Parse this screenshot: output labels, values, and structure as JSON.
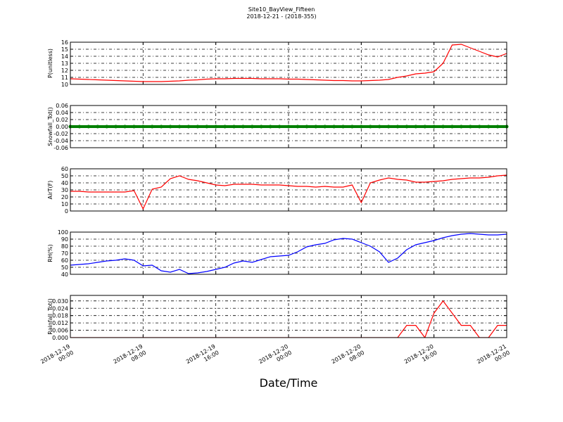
{
  "title": "Site10_BayView_Fifteen",
  "subtitle": "2018-12-21 - (2018-355)",
  "xlabel": "Date/Time",
  "xlim": [
    "2018-12-19 00:00",
    "2018-12-21 00:00"
  ],
  "xticks": [
    "2018-12-19 00:00",
    "2018-12-19 08:00",
    "2018-12-19 16:00",
    "2018-12-20 00:00",
    "2018-12-20 08:00",
    "2018-12-20 16:00",
    "2018-12-21 00:00"
  ],
  "grid": true,
  "x": [
    "2018-12-19 00:00",
    "2018-12-19 01:00",
    "2018-12-19 02:00",
    "2018-12-19 03:00",
    "2018-12-19 04:00",
    "2018-12-19 05:00",
    "2018-12-19 06:00",
    "2018-12-19 07:00",
    "2018-12-19 08:00",
    "2018-12-19 09:00",
    "2018-12-19 10:00",
    "2018-12-19 11:00",
    "2018-12-19 12:00",
    "2018-12-19 13:00",
    "2018-12-19 14:00",
    "2018-12-19 15:00",
    "2018-12-19 16:00",
    "2018-12-19 17:00",
    "2018-12-19 18:00",
    "2018-12-19 19:00",
    "2018-12-19 20:00",
    "2018-12-19 21:00",
    "2018-12-19 22:00",
    "2018-12-19 23:00",
    "2018-12-20 00:00",
    "2018-12-20 01:00",
    "2018-12-20 02:00",
    "2018-12-20 03:00",
    "2018-12-20 04:00",
    "2018-12-20 05:00",
    "2018-12-20 06:00",
    "2018-12-20 07:00",
    "2018-12-20 08:00",
    "2018-12-20 09:00",
    "2018-12-20 10:00",
    "2018-12-20 11:00",
    "2018-12-20 12:00",
    "2018-12-20 13:00",
    "2018-12-20 14:00",
    "2018-12-20 15:00",
    "2018-12-20 16:00",
    "2018-12-20 17:00",
    "2018-12-20 18:00",
    "2018-12-20 19:00",
    "2018-12-20 20:00",
    "2018-12-20 21:00",
    "2018-12-20 22:00",
    "2018-12-20 23:00",
    "2018-12-21 00:00"
  ],
  "chart_data": [
    {
      "type": "line",
      "ylabel": "P(unitless)",
      "color": "#ff0000",
      "markers": false,
      "ylim": [
        10,
        16
      ],
      "yticks": [
        10,
        11,
        12,
        13,
        14,
        15,
        16
      ],
      "values": [
        10.8,
        10.75,
        10.7,
        10.65,
        10.6,
        10.55,
        10.5,
        10.45,
        10.4,
        10.4,
        10.4,
        10.45,
        10.5,
        10.6,
        10.65,
        10.75,
        10.8,
        10.8,
        10.85,
        10.85,
        10.85,
        10.8,
        10.8,
        10.8,
        10.75,
        10.75,
        10.7,
        10.65,
        10.6,
        10.55,
        10.55,
        10.5,
        10.5,
        10.55,
        10.6,
        10.7,
        11.0,
        11.2,
        11.5,
        11.6,
        11.8,
        13.0,
        15.6,
        15.7,
        15.2,
        14.7,
        14.2,
        13.9,
        14.4
      ]
    },
    {
      "type": "line",
      "ylabel": "Snowfall_Tot()",
      "color": "#008000",
      "markers": true,
      "ylim": [
        -0.06,
        0.06
      ],
      "yticks": [
        -0.06,
        -0.04,
        -0.02,
        {
          "value": 0,
          "label": "0.00"
        },
        0.02,
        0.04,
        0.06
      ],
      "values": [
        0,
        0,
        0,
        0,
        0,
        0,
        0,
        0,
        0,
        0,
        0,
        0,
        0,
        0,
        0,
        0,
        0,
        0,
        0,
        0,
        0,
        0,
        0,
        0,
        0,
        0,
        0,
        0,
        0,
        0,
        0,
        0,
        0,
        0,
        0,
        0,
        0,
        0,
        0,
        0,
        0,
        0,
        0,
        0,
        0,
        0,
        0,
        0,
        0
      ]
    },
    {
      "type": "line",
      "ylabel": "AirT(F)",
      "color": "#ff0000",
      "markers": false,
      "ylim": [
        0,
        60
      ],
      "yticks": [
        0,
        10,
        20,
        30,
        40,
        50,
        60
      ],
      "values": [
        28,
        28,
        27,
        27,
        27,
        27,
        27,
        29,
        3,
        31,
        34,
        46,
        50,
        45,
        43,
        40,
        37,
        36,
        38,
        38,
        38,
        37,
        37,
        37,
        36,
        35,
        35,
        34,
        35,
        34,
        34,
        37,
        12,
        40,
        44,
        47,
        45,
        44,
        41,
        41,
        42,
        43,
        45,
        46,
        47,
        47,
        48,
        50,
        51
      ]
    },
    {
      "type": "line",
      "ylabel": "RH(%)",
      "color": "#0000ff",
      "markers": false,
      "ylim": [
        40,
        100
      ],
      "yticks": [
        40,
        50,
        60,
        70,
        80,
        90,
        100
      ],
      "values": [
        53,
        54,
        55,
        57,
        59,
        60,
        62,
        60,
        52,
        53,
        45,
        43,
        47,
        41,
        42,
        44,
        47,
        50,
        56,
        59,
        57,
        61,
        65,
        66,
        67,
        72,
        79,
        82,
        84,
        89,
        91,
        90,
        85,
        80,
        72,
        57,
        63,
        75,
        82,
        85,
        88,
        92,
        95,
        97,
        98,
        97,
        96,
        96,
        97
      ]
    },
    {
      "type": "line",
      "ylabel": "Rainfall_Tot()",
      "color": "#ff0000",
      "markers": false,
      "ylim": [
        0,
        0.0345
      ],
      "yticks": [
        {
          "value": 0,
          "label": "0.000"
        },
        0.006,
        0.012,
        0.018,
        0.024,
        {
          "value": 0.03,
          "label": "0.030"
        }
      ],
      "values": [
        0,
        0,
        0,
        0,
        0,
        0,
        0,
        0,
        0,
        0,
        0,
        0,
        0,
        0,
        0,
        0,
        0,
        0,
        0,
        0,
        0,
        0,
        0,
        0,
        0,
        0,
        0,
        0,
        0,
        0,
        0,
        0,
        0,
        0,
        0,
        0,
        0,
        0.01,
        0.01,
        0,
        0.02,
        0.03,
        0.02,
        0.01,
        0.01,
        0,
        0,
        0.01,
        0.01
      ]
    }
  ]
}
